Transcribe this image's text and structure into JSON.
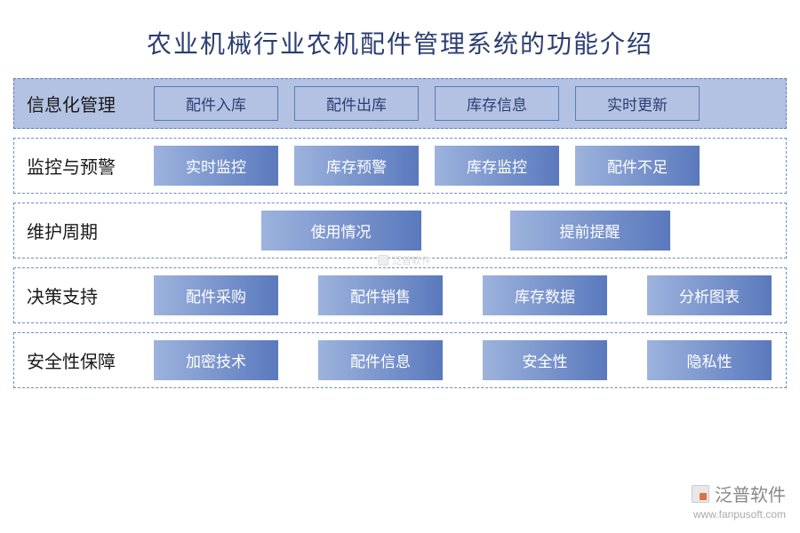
{
  "title": "农业机械行业农机配件管理系统的功能介绍",
  "colors": {
    "title_text": "#2c3e72",
    "dashed_border": "#6b8dc9",
    "filled_row_bg": "#b3c2e3",
    "outline_border": "#5a7ab8",
    "outline_text": "#2c3e72",
    "grad_start": "#9db3dd",
    "grad_end": "#5a79bd",
    "grad_text": "#ffffff",
    "background": "#ffffff"
  },
  "rows": [
    {
      "label": "信息化管理",
      "style": "filled",
      "item_style": "outline",
      "layout": "normal",
      "items": [
        "配件入库",
        "配件出库",
        "库存信息",
        "实时更新"
      ]
    },
    {
      "label": "监控与预警",
      "style": "plain",
      "item_style": "grad",
      "layout": "normal",
      "items": [
        "实时监控",
        "库存预警",
        "库存监控",
        "配件不足"
      ]
    },
    {
      "label": "维护周期",
      "style": "plain",
      "item_style": "grad",
      "layout": "centered",
      "items": [
        "使用情况",
        "提前提醒"
      ]
    },
    {
      "label": "决策支持",
      "style": "plain",
      "item_style": "grad",
      "layout": "spread",
      "items": [
        "配件采购",
        "配件销售",
        "库存数据",
        "分析图表"
      ]
    },
    {
      "label": "安全性保障",
      "style": "plain",
      "item_style": "grad",
      "layout": "spread",
      "items": [
        "加密技术",
        "配件信息",
        "安全性",
        "隐私性"
      ]
    }
  ],
  "watermark": {
    "center_text": "泛普软件",
    "brand": "泛普软件",
    "url": "www.fanpusoft.com"
  }
}
